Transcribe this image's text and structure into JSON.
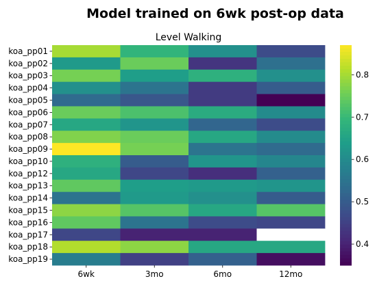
{
  "chart_data": {
    "type": "heatmap",
    "suptitle": "Model trained on 6wk post-op data",
    "title": "Level Walking",
    "columns": [
      "6wk",
      "3mo",
      "6mo",
      "12mo"
    ],
    "rows": [
      "koa_pp01",
      "koa_pp02",
      "koa_pp03",
      "koa_pp04",
      "koa_pp05",
      "koa_pp06",
      "koa_pp07",
      "koa_pp08",
      "koa_pp09",
      "koa_pp10",
      "koa_pp12",
      "koa_pp13",
      "koa_pp14",
      "koa_pp15",
      "koa_pp16",
      "koa_pp17",
      "koa_pp18",
      "koa_pp19"
    ],
    "values": [
      [
        0.8,
        0.69,
        0.61,
        0.47
      ],
      [
        0.63,
        0.75,
        0.43,
        0.54
      ],
      [
        0.76,
        0.64,
        0.68,
        0.61
      ],
      [
        0.61,
        0.55,
        0.44,
        0.5
      ],
      [
        0.53,
        0.49,
        0.44,
        0.35
      ],
      [
        0.75,
        0.72,
        0.67,
        0.6
      ],
      [
        0.66,
        0.62,
        0.52,
        0.47
      ],
      [
        0.77,
        0.75,
        0.66,
        0.6
      ],
      [
        0.87,
        0.76,
        0.55,
        0.53
      ],
      [
        0.68,
        0.5,
        0.62,
        0.59
      ],
      [
        0.66,
        0.46,
        0.42,
        0.51
      ],
      [
        0.74,
        0.64,
        0.63,
        0.62
      ],
      [
        0.55,
        0.63,
        0.61,
        0.5
      ],
      [
        0.78,
        0.73,
        0.66,
        0.73
      ],
      [
        0.74,
        0.55,
        0.47,
        0.46
      ],
      [
        0.46,
        0.4,
        0.4,
        null
      ],
      [
        0.81,
        0.78,
        0.66,
        0.66
      ],
      [
        0.57,
        0.45,
        0.51,
        0.37
      ]
    ],
    "colormap": "viridis",
    "vmin": 0.35,
    "vmax": 0.87,
    "colorbar_ticks": [
      0.4,
      0.5,
      0.6,
      0.7,
      0.8
    ],
    "colorbar_tick_labels": [
      "0.4",
      "0.5",
      "0.6",
      "0.7",
      "0.8"
    ],
    "missing_cell_color": "#ffffff"
  }
}
